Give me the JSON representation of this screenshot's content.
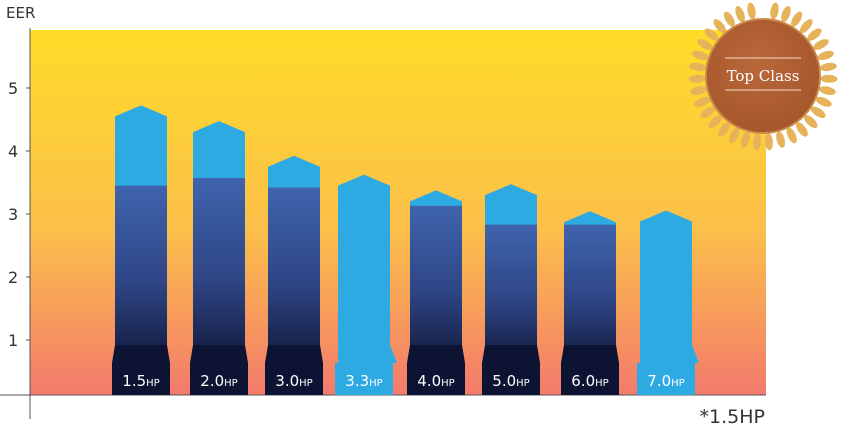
{
  "chart_data": {
    "type": "bar",
    "ylabel": "EER",
    "ylim": [
      0,
      5.8
    ],
    "yticks": [
      1,
      2,
      3,
      4,
      5
    ],
    "categories": [
      "1.5",
      "2.0",
      "3.0",
      "3.3",
      "4.0",
      "5.0",
      "6.0",
      "7.0"
    ],
    "unit": "HP",
    "series": [
      {
        "values": [
          3.45,
          3.57,
          3.42,
          0,
          3.13,
          2.83,
          2.83,
          0
        ]
      },
      {
        "values": [
          4.55,
          4.3,
          3.75,
          3.45,
          3.2,
          3.3,
          2.87,
          2.88
        ]
      }
    ],
    "grid": false,
    "footnote": "*1.5HP",
    "badge": "Top Class",
    "colors": {
      "bg_top": "#ffdc28",
      "bg_bottom": "#f37a6c",
      "dark_bar_top": "#3f64ad",
      "dark_bar_bottom": "#121a3c",
      "light_bar": "#2eaae2",
      "label_box_dark": "#0d1433",
      "label_box_light": "#2eaae2",
      "badge": "#a4552a",
      "laurel": "#e6b25a"
    }
  }
}
